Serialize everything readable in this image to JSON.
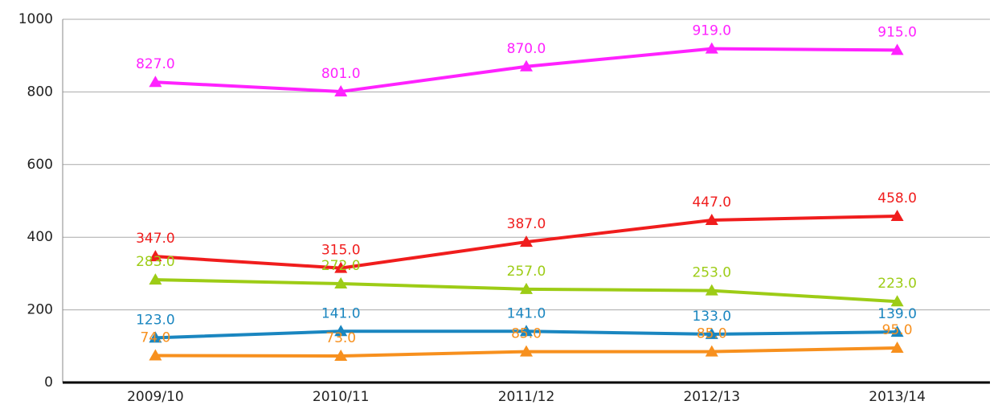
{
  "chart_data": {
    "type": "line",
    "categories": [
      "2009/10",
      "2010/11",
      "2011/12",
      "2012/13",
      "2013/14"
    ],
    "series": [
      {
        "color": "#ff22ff",
        "values": [
          827,
          801,
          870,
          919,
          915
        ],
        "value_labels": [
          "827.0",
          "801.0",
          "870.0",
          "919.0",
          "915.0"
        ]
      },
      {
        "color": "#f01d1d",
        "values": [
          347,
          315,
          387,
          447,
          458
        ],
        "value_labels": [
          "347.0",
          "315.0",
          "387.0",
          "447.0",
          "458.0"
        ]
      },
      {
        "color": "#9dcc16",
        "values": [
          283,
          272,
          257,
          253,
          223
        ],
        "value_labels": [
          "283.0",
          "272.0",
          "257.0",
          "253.0",
          "223.0"
        ]
      },
      {
        "color": "#1a86c0",
        "values": [
          123,
          141,
          141,
          133,
          139
        ],
        "value_labels": [
          "123.0",
          "141.0",
          "141.0",
          "133.0",
          "139.0"
        ]
      },
      {
        "color": "#f7901e",
        "values": [
          74,
          73,
          85,
          85,
          95
        ],
        "value_labels": [
          "74.0",
          "73.0",
          "85.0",
          "85.0",
          "95.0"
        ]
      }
    ],
    "ylim": [
      0,
      1000
    ],
    "yticks": [
      0,
      200,
      400,
      600,
      800,
      1000
    ],
    "grid": true
  }
}
